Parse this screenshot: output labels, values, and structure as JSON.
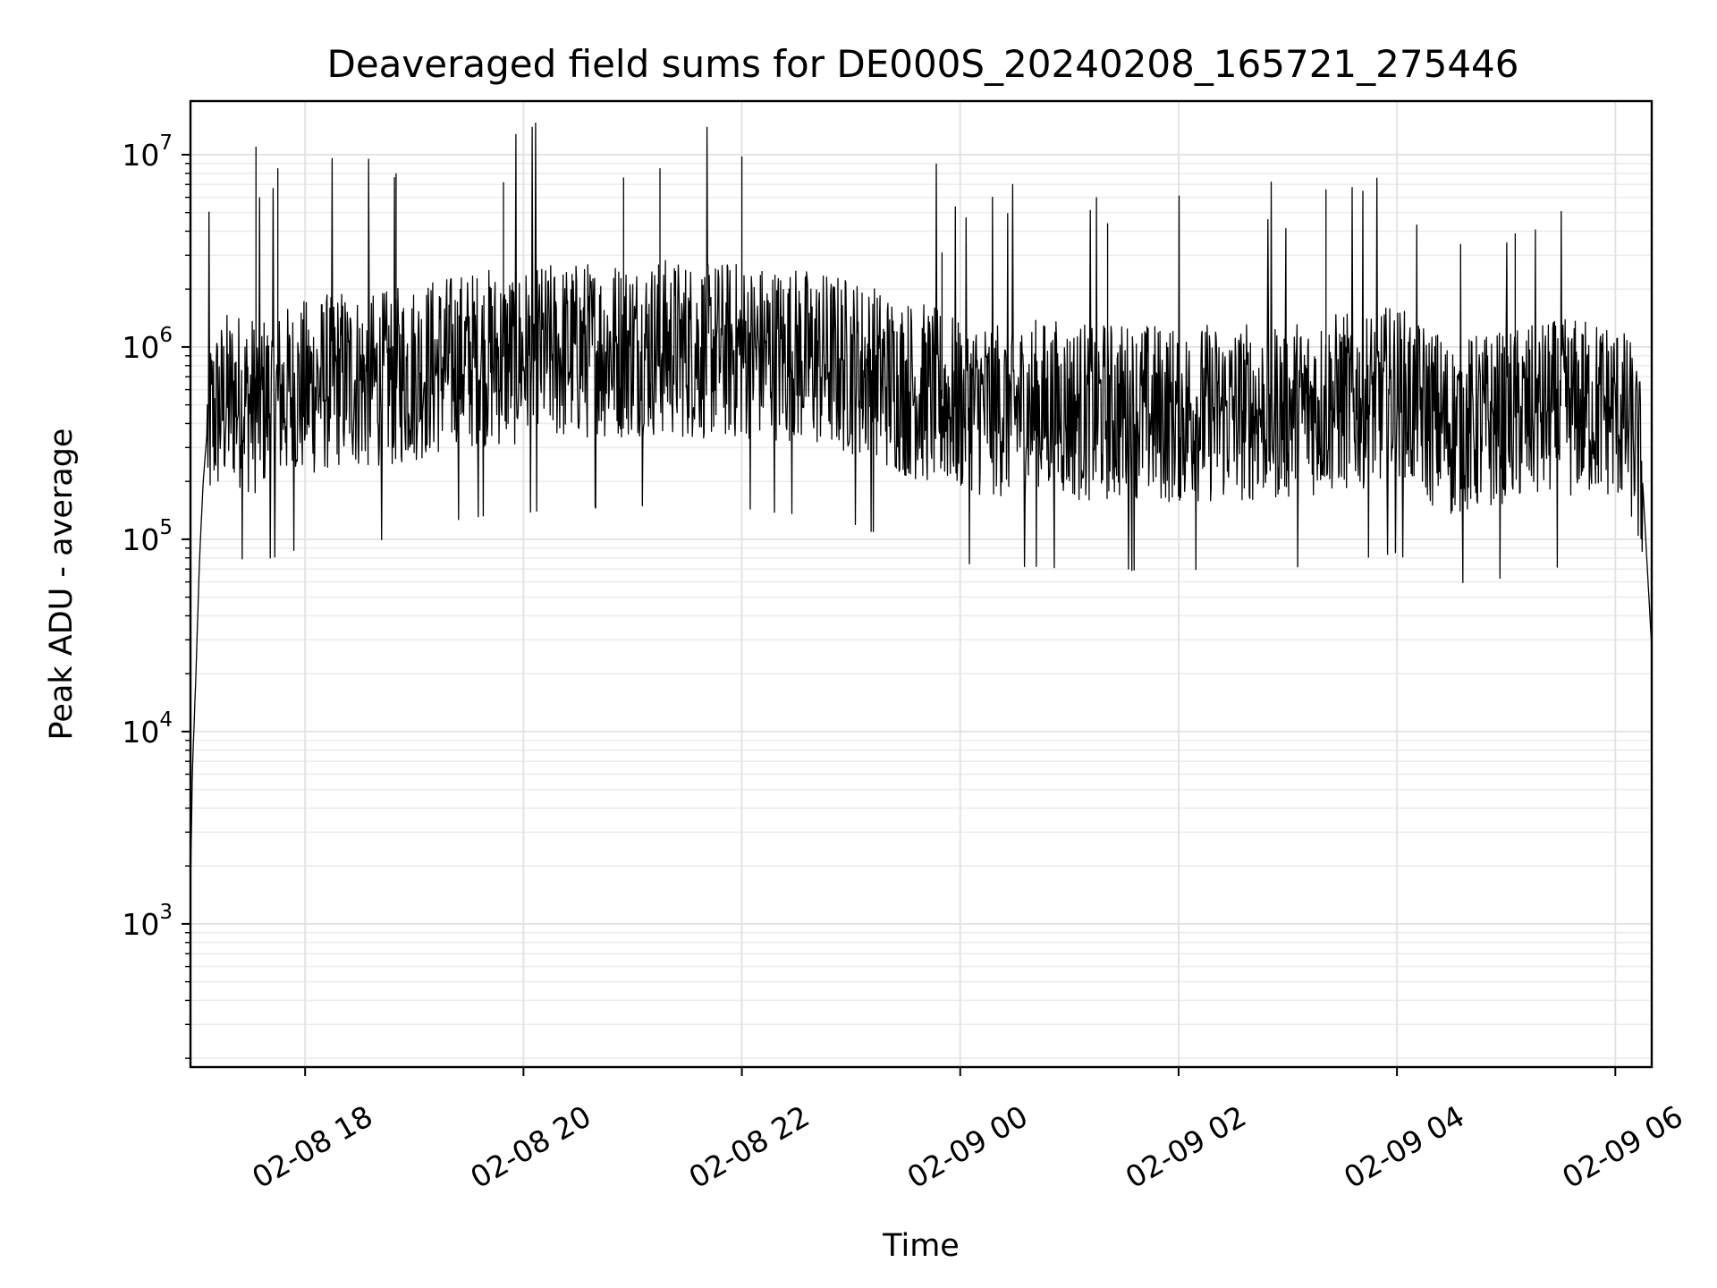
{
  "chart_data": {
    "type": "line",
    "title": "Deaveraged field sums for DE000S_20240208_165721_275446",
    "xlabel": "Time",
    "ylabel": "Peak ADU - average",
    "yscale": "log",
    "ylim": [
      180,
      19000000
    ],
    "xlim": [
      "2024-02-08 16:57",
      "2024-02-09 06:20"
    ],
    "x_ticks": [
      "2024-02-08 18:00",
      "2024-02-08 20:00",
      "2024-02-08 22:00",
      "2024-02-09 00:00",
      "2024-02-09 02:00",
      "2024-02-09 04:00",
      "2024-02-09 06:00"
    ],
    "x_tick_labels": [
      "02-08 18",
      "02-08 20",
      "02-08 22",
      "02-09 00",
      "02-09 02",
      "02-09 04",
      "02-09 06"
    ],
    "y_ticks": [
      1000,
      10000,
      100000,
      1000000,
      10000000
    ],
    "y_tick_labels": [
      {
        "base": "10",
        "exp": "3"
      },
      {
        "base": "10",
        "exp": "4"
      },
      {
        "base": "10",
        "exp": "5"
      },
      {
        "base": "10",
        "exp": "6"
      },
      {
        "base": "10",
        "exp": "7"
      }
    ],
    "grid": true,
    "series": [
      {
        "color": "#000000",
        "x": [
          "2024-02-08 16:57",
          "2024-02-08 16:58",
          "2024-02-08 17:00",
          "2024-02-08 17:02",
          "2024-02-08 17:04",
          "2024-02-08 17:06",
          "2024-02-08 17:10",
          "2024-02-08 17:20",
          "2024-02-08 17:30",
          "2024-02-08 17:40",
          "2024-02-08 17:50",
          "2024-02-08 18:00",
          "2024-02-08 18:20",
          "2024-02-08 18:40",
          "2024-02-08 19:00",
          "2024-02-08 19:20",
          "2024-02-08 19:40",
          "2024-02-08 20:00",
          "2024-02-08 20:30",
          "2024-02-08 21:00",
          "2024-02-08 21:30",
          "2024-02-08 22:00",
          "2024-02-08 22:30",
          "2024-02-08 23:00",
          "2024-02-08 23:30",
          "2024-02-09 00:00",
          "2024-02-09 00:30",
          "2024-02-09 01:00",
          "2024-02-09 01:30",
          "2024-02-09 02:00",
          "2024-02-09 02:30",
          "2024-02-09 03:00",
          "2024-02-09 03:30",
          "2024-02-09 04:00",
          "2024-02-09 04:30",
          "2024-02-09 05:00",
          "2024-02-09 05:30",
          "2024-02-09 06:00",
          "2024-02-09 06:10",
          "2024-02-09 06:15",
          "2024-02-09 06:18",
          "2024-02-09 06:20"
        ],
        "values": [
          1500,
          6000,
          20000,
          80000,
          200000,
          350000,
          450000,
          550000,
          500000,
          520000,
          560000,
          600000,
          700000,
          650000,
          750000,
          820000,
          880000,
          900000,
          950000,
          1000000,
          980000,
          950000,
          900000,
          800000,
          620000,
          500000,
          480000,
          470000,
          460000,
          450000,
          460000,
          470000,
          520000,
          560000,
          380000,
          420000,
          480000,
          480000,
          350000,
          200000,
          60000,
          27000
        ]
      }
    ],
    "peaks": {
      "x": [
        "2024-02-08 17:33",
        "2024-02-08 17:45",
        "2024-02-08 18:50",
        "2024-02-08 19:49",
        "2024-02-08 20:55",
        "2024-02-08 21:15",
        "2024-02-08 22:00",
        "2024-02-08 23:50",
        "2024-02-09 01:21",
        "2024-02-09 03:21",
        "2024-02-09 05:05"
      ],
      "values": [
        11000000,
        8500000,
        8000000,
        7200000,
        7600000,
        8500000,
        9800000,
        3100000,
        4400000,
        6600000,
        3900000
      ]
    }
  }
}
